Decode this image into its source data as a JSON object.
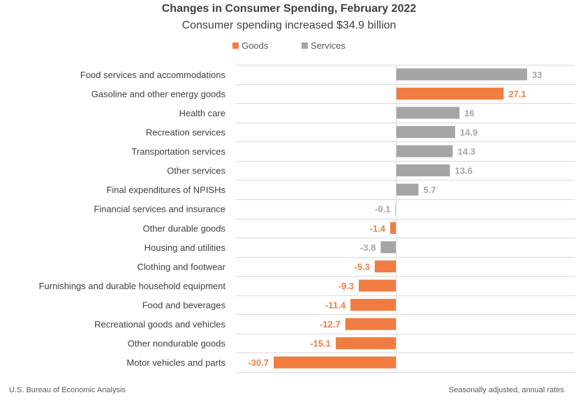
{
  "chart_data": {
    "type": "bar",
    "orientation": "horizontal",
    "title": "Changes in Consumer Spending, February 2022",
    "subtitle": "Consumer spending increased $34.9 billion",
    "xlabel": "",
    "ylabel": "",
    "xlim": [
      -34,
      45
    ],
    "grid": true,
    "legend_placement": "top-center",
    "legend": [
      {
        "name": "Goods",
        "color": "#F07C41"
      },
      {
        "name": "Services",
        "color": "#A5A5A5"
      }
    ],
    "categories": [
      "Food services and accommodations",
      "Gasoline and other energy goods",
      "Health care",
      "Recreation services",
      "Transportation services",
      "Other services",
      "Final expenditures of NPISHs",
      "Financial services and insurance",
      "Other durable goods",
      "Housing and utilities",
      "Clothing and footwear",
      "Furnishings and durable household equipment",
      "Food and beverages",
      "Recreational goods and vehicles",
      "Other nondurable goods",
      "Motor vehicles and parts"
    ],
    "values": [
      33,
      27.1,
      16,
      14.9,
      14.3,
      13.6,
      5.7,
      -0.1,
      -1.4,
      -3.8,
      -5.3,
      -9.3,
      -11.4,
      -12.7,
      -15.1,
      -30.7
    ],
    "labels": [
      "33",
      "27.1",
      "16",
      "14.9",
      "14.3",
      "13.6",
      "5.7",
      "-0.1",
      "-1.4",
      "-3.8",
      "-5.3",
      "-9.3",
      "-11.4",
      "-12.7",
      "-15.1",
      "-30.7"
    ],
    "groups": [
      "Services",
      "Goods",
      "Services",
      "Services",
      "Services",
      "Services",
      "Services",
      "Services",
      "Goods",
      "Services",
      "Goods",
      "Goods",
      "Goods",
      "Goods",
      "Goods",
      "Goods"
    ]
  },
  "footer": {
    "source": "U.S. Bureau of Economic Analysis",
    "note": "Seasonally adjusted, annual rates"
  }
}
